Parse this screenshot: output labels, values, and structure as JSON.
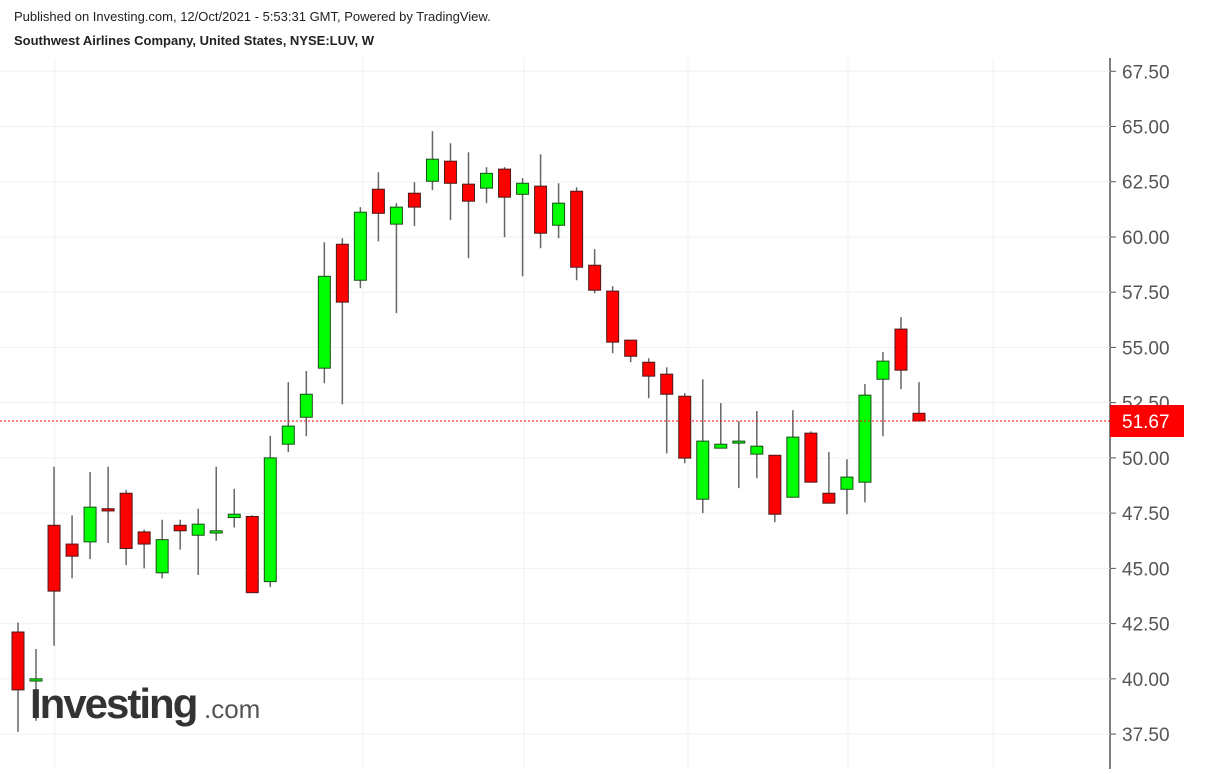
{
  "chart_data": {
    "type": "candlestick",
    "published": "Published on Investing.com, 12/Oct/2021 - 5:53:31 GMT, Powered by TradingView.",
    "title": "Southwest Airlines Company, United States, NYSE:LUV, W",
    "logo": {
      "brand": "Investing",
      "suffix": ".com"
    },
    "up_color": "#00ff00",
    "down_color": "#ff0000",
    "open": [
      42.12,
      39.9,
      46.95,
      46.1,
      46.2,
      47.7,
      48.4,
      46.65,
      44.8,
      46.95,
      46.5,
      46.6,
      47.3,
      47.35,
      44.4,
      50.62,
      51.84,
      54.06,
      59.67,
      58.04,
      62.16,
      60.58,
      61.98,
      62.52,
      63.43,
      62.39,
      62.21,
      63.07,
      61.93,
      62.3,
      60.53,
      62.07,
      58.72,
      57.55,
      55.33,
      54.33,
      53.79,
      52.79,
      48.13,
      50.44,
      50.67,
      50.17,
      50.12,
      48.22,
      51.12,
      48.4,
      48.58,
      48.9,
      53.56,
      55.83,
      52.02
    ],
    "high": [
      42.55,
      41.35,
      49.6,
      47.4,
      49.36,
      49.6,
      48.55,
      46.75,
      47.2,
      47.2,
      47.7,
      49.6,
      48.6,
      47.4,
      51.0,
      53.43,
      53.93,
      59.76,
      59.94,
      61.35,
      62.93,
      61.53,
      62.48,
      64.79,
      64.24,
      63.83,
      63.16,
      63.16,
      62.66,
      63.74,
      62.43,
      62.25,
      59.45,
      57.77,
      55.33,
      54.51,
      54.1,
      52.93,
      53.56,
      52.48,
      51.66,
      52.12,
      50.12,
      52.16,
      51.2,
      50.26,
      49.94,
      53.34,
      54.79,
      56.37,
      53.43
    ],
    "low": [
      37.6,
      38.1,
      41.5,
      44.55,
      45.42,
      46.15,
      45.15,
      45.0,
      44.55,
      45.85,
      44.7,
      46.25,
      46.85,
      43.9,
      44.15,
      50.26,
      50.98,
      53.38,
      52.43,
      57.68,
      59.8,
      56.55,
      60.49,
      62.12,
      60.76,
      59.04,
      61.53,
      59.99,
      58.22,
      59.49,
      59.94,
      58.04,
      57.45,
      54.74,
      54.33,
      52.7,
      50.2,
      49.76,
      47.5,
      50.44,
      48.63,
      49.08,
      47.09,
      48.22,
      48.9,
      47.95,
      47.45,
      47.99,
      50.98,
      53.11,
      51.67
    ],
    "close": [
      39.5,
      40.0,
      43.97,
      45.55,
      47.77,
      47.6,
      45.9,
      46.1,
      46.3,
      46.7,
      47.0,
      46.7,
      47.45,
      43.9,
      50.0,
      51.44,
      52.88,
      58.22,
      57.05,
      61.12,
      61.07,
      61.35,
      61.35,
      63.52,
      62.43,
      61.62,
      62.88,
      61.8,
      62.43,
      60.17,
      61.53,
      58.63,
      57.59,
      55.24,
      54.6,
      53.7,
      52.88,
      49.99,
      50.76,
      50.62,
      50.76,
      50.53,
      47.45,
      50.94,
      48.9,
      47.95,
      49.13,
      52.84,
      54.38,
      53.97,
      51.67
    ],
    "last_price": 51.67,
    "ylim": [
      36.1,
      68.1
    ],
    "yticks": [
      {
        "value": 37.5,
        "label": "37.50"
      },
      {
        "value": 40,
        "label": "40.00"
      },
      {
        "value": 42.5,
        "label": "42.50"
      },
      {
        "value": 45,
        "label": "45.00"
      },
      {
        "value": 47.5,
        "label": "47.50"
      },
      {
        "value": 50,
        "label": "50.00"
      },
      {
        "value": 52.5,
        "label": "52.50"
      },
      {
        "value": 55,
        "label": "55.00"
      },
      {
        "value": 57.5,
        "label": "57.50"
      },
      {
        "value": 60,
        "label": "60.00"
      },
      {
        "value": 62.5,
        "label": "62.50"
      },
      {
        "value": 65,
        "label": "65.00"
      },
      {
        "value": 67.5,
        "label": "67.50"
      }
    ],
    "grid": true
  }
}
